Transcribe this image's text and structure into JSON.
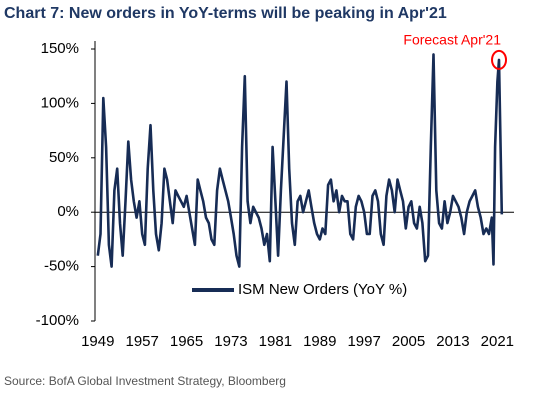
{
  "chart_data": {
    "type": "line",
    "title": "Chart 7: New orders in YoY-terms will be peaking in Apr'21",
    "source": "Source: BofA Global Investment Strategy, Bloomberg",
    "annotation": "Forecast Apr'21",
    "annotation_color": "#ff0000",
    "legend_position": "lower center",
    "xlim": [
      1948.5,
      2024
    ],
    "xticks": [
      1949,
      1957,
      1965,
      1973,
      1981,
      1989,
      1997,
      2005,
      2013,
      2021
    ],
    "ylim": [
      -100,
      150
    ],
    "yticks": [
      {
        "value": -100,
        "label": "-100%"
      },
      {
        "value": -50,
        "label": "-50%"
      },
      {
        "value": 0,
        "label": "0%"
      },
      {
        "value": 50,
        "label": "50%"
      },
      {
        "value": 100,
        "label": "100%"
      },
      {
        "value": 150,
        "label": "150%"
      }
    ],
    "x": [
      1949,
      1949.5,
      1950,
      1950.5,
      1951,
      1951.5,
      1952,
      1952.5,
      1953,
      1953.5,
      1954,
      1954.5,
      1955,
      1955.5,
      1956,
      1956.5,
      1957,
      1957.5,
      1958,
      1958.5,
      1959,
      1959.5,
      1960,
      1960.5,
      1961,
      1961.5,
      1962,
      1962.5,
      1963,
      1963.5,
      1964,
      1964.5,
      1965,
      1965.5,
      1966,
      1966.5,
      1967,
      1967.5,
      1968,
      1968.5,
      1969,
      1969.5,
      1970,
      1970.5,
      1971,
      1971.5,
      1972,
      1972.5,
      1973,
      1973.5,
      1974,
      1974.5,
      1975,
      1975.5,
      1976,
      1976.5,
      1977,
      1977.5,
      1978,
      1978.5,
      1979,
      1979.5,
      1980,
      1980.5,
      1981,
      1981.5,
      1982,
      1982.5,
      1983,
      1983.5,
      1984,
      1984.5,
      1985,
      1985.5,
      1986,
      1986.5,
      1987,
      1987.5,
      1988,
      1988.5,
      1989,
      1989.5,
      1990,
      1990.5,
      1991,
      1991.5,
      1992,
      1992.5,
      1993,
      1993.5,
      1994,
      1994.5,
      1995,
      1995.5,
      1996,
      1996.5,
      1997,
      1997.5,
      1998,
      1998.5,
      1999,
      1999.5,
      2000,
      2000.5,
      2001,
      2001.5,
      2002,
      2002.5,
      2003,
      2003.5,
      2004,
      2004.5,
      2005,
      2005.5,
      2006,
      2006.5,
      2007,
      2007.5,
      2008,
      2008.5,
      2009,
      2009.5,
      2010,
      2010.5,
      2011,
      2011.5,
      2012,
      2012.5,
      2013,
      2013.5,
      2014,
      2014.5,
      2015,
      2015.5,
      2016,
      2016.5,
      2017,
      2017.5,
      2018,
      2018.5,
      2019,
      2019.5,
      2020,
      2020.3,
      2020.6,
      2021,
      2021.3,
      2021.8
    ],
    "series": [
      {
        "name": "ISM New Orders (YoY %)",
        "color": "#172c55",
        "values": [
          -40,
          -20,
          105,
          60,
          -30,
          -50,
          20,
          40,
          -10,
          -40,
          10,
          65,
          30,
          10,
          -5,
          10,
          -20,
          -30,
          40,
          80,
          20,
          -20,
          -35,
          -10,
          40,
          30,
          10,
          -10,
          20,
          15,
          10,
          5,
          15,
          0,
          -15,
          -30,
          30,
          20,
          10,
          -5,
          -10,
          -25,
          -30,
          20,
          40,
          30,
          20,
          10,
          -5,
          -20,
          -40,
          -50,
          60,
          125,
          10,
          -10,
          5,
          0,
          -5,
          -15,
          -30,
          -20,
          -45,
          60,
          10,
          -40,
          20,
          70,
          120,
          40,
          -10,
          -30,
          10,
          15,
          0,
          10,
          20,
          5,
          -10,
          -20,
          -25,
          -15,
          -20,
          25,
          30,
          10,
          20,
          0,
          15,
          10,
          10,
          -20,
          -25,
          5,
          15,
          10,
          0,
          -20,
          -20,
          15,
          20,
          10,
          -20,
          -30,
          15,
          30,
          20,
          0,
          30,
          20,
          10,
          -15,
          5,
          10,
          -10,
          -15,
          5,
          -10,
          -45,
          -40,
          60,
          145,
          20,
          -10,
          -15,
          10,
          -10,
          0,
          15,
          10,
          5,
          -5,
          -20,
          0,
          10,
          15,
          20,
          5,
          -5,
          -20,
          -15,
          -20,
          -5,
          -48,
          60,
          120,
          140,
          -2
        ]
      }
    ]
  }
}
